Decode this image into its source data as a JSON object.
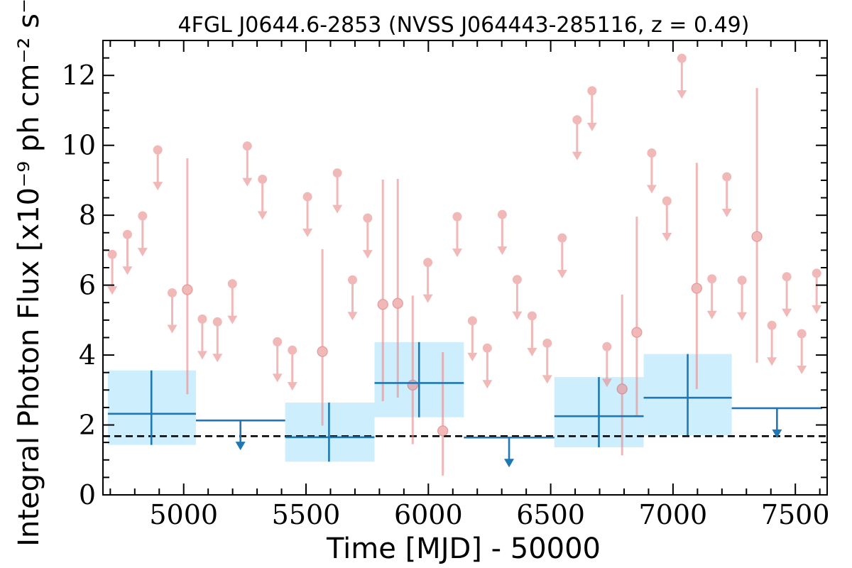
{
  "chart_data": {
    "type": "scatter",
    "title": "4FGL J0644.6-2853 (NVSS J064443-285116, z = 0.49)",
    "xlabel": "Time [MJD] - 50000",
    "ylabel": "Integral Photon Flux [x10⁻⁹ ph cm⁻² s⁻¹]",
    "xlim": [
      4670,
      7630
    ],
    "ylim": [
      0,
      13
    ],
    "xticks": [
      5000,
      5500,
      6000,
      6500,
      7000,
      7500
    ],
    "yticks": [
      0,
      2,
      4,
      6,
      8,
      10,
      12
    ],
    "grid": false,
    "colors": {
      "short_bins": "#e88a8a",
      "long_bins": "#1f77b4",
      "long_bins_fill": "#cdeefc",
      "reference_line": "#000000"
    },
    "reference_line": {
      "y": 1.68,
      "style": "dashed"
    },
    "short_bins_upper_limits": [
      {
        "x": 4708,
        "y": 6.88
      },
      {
        "x": 4770,
        "y": 7.45
      },
      {
        "x": 4832,
        "y": 7.98
      },
      {
        "x": 4894,
        "y": 9.87
      },
      {
        "x": 4953,
        "y": 5.78
      },
      {
        "x": 5076,
        "y": 5.03
      },
      {
        "x": 5138,
        "y": 4.95
      },
      {
        "x": 5199,
        "y": 6.04
      },
      {
        "x": 5260,
        "y": 9.98
      },
      {
        "x": 5322,
        "y": 9.03
      },
      {
        "x": 5383,
        "y": 4.38
      },
      {
        "x": 5444,
        "y": 4.14
      },
      {
        "x": 5506,
        "y": 8.53
      },
      {
        "x": 5628,
        "y": 9.21
      },
      {
        "x": 5690,
        "y": 6.15
      },
      {
        "x": 5752,
        "y": 7.92
      },
      {
        "x": 5998,
        "y": 6.65
      },
      {
        "x": 6118,
        "y": 7.96
      },
      {
        "x": 6180,
        "y": 4.98
      },
      {
        "x": 6241,
        "y": 4.2
      },
      {
        "x": 6302,
        "y": 8.02
      },
      {
        "x": 6363,
        "y": 6.16
      },
      {
        "x": 6424,
        "y": 5.12
      },
      {
        "x": 6486,
        "y": 4.34
      },
      {
        "x": 6547,
        "y": 7.35
      },
      {
        "x": 6608,
        "y": 10.73
      },
      {
        "x": 6669,
        "y": 11.56
      },
      {
        "x": 6730,
        "y": 4.24
      },
      {
        "x": 6913,
        "y": 9.78
      },
      {
        "x": 6975,
        "y": 8.41
      },
      {
        "x": 7036,
        "y": 12.49
      },
      {
        "x": 7159,
        "y": 6.18
      },
      {
        "x": 7220,
        "y": 9.1
      },
      {
        "x": 7282,
        "y": 6.14
      },
      {
        "x": 7404,
        "y": 4.85
      },
      {
        "x": 7465,
        "y": 6.24
      },
      {
        "x": 7526,
        "y": 4.61
      },
      {
        "x": 7587,
        "y": 6.34
      }
    ],
    "short_bins_detections": [
      {
        "x": 5015,
        "y": 5.87,
        "ylow": 2.88,
        "yhigh": 9.63
      },
      {
        "x": 5567,
        "y": 4.1,
        "ylow": 1.98,
        "yhigh": 7.03
      },
      {
        "x": 5814,
        "y": 5.45,
        "ylow": 2.68,
        "yhigh": 9.02
      },
      {
        "x": 5875,
        "y": 5.48,
        "ylow": 2.78,
        "yhigh": 9.04
      },
      {
        "x": 5936,
        "y": 3.14,
        "ylow": 1.45,
        "yhigh": 5.7
      },
      {
        "x": 6059,
        "y": 1.83,
        "ylow": 0.55,
        "yhigh": 4.08
      },
      {
        "x": 6792,
        "y": 3.03,
        "ylow": 1.13,
        "yhigh": 5.73
      },
      {
        "x": 6852,
        "y": 4.65,
        "ylow": 2.28,
        "yhigh": 7.96
      },
      {
        "x": 7097,
        "y": 5.91,
        "ylow": 3.03,
        "yhigh": 9.5
      },
      {
        "x": 7343,
        "y": 7.39,
        "ylow": 3.78,
        "yhigh": 11.64
      }
    ],
    "long_bins_detections": [
      {
        "x": 4868,
        "xmin": 4690,
        "xmax": 5050,
        "y": 2.32,
        "ylow": 1.43,
        "yhigh": 3.56
      },
      {
        "x": 5594,
        "xmin": 5415,
        "xmax": 5780,
        "y": 1.65,
        "ylow": 0.95,
        "yhigh": 2.64
      },
      {
        "x": 5962,
        "xmin": 5780,
        "xmax": 6145,
        "y": 3.2,
        "ylow": 2.22,
        "yhigh": 4.37
      },
      {
        "x": 6697,
        "xmin": 6515,
        "xmax": 6880,
        "y": 2.25,
        "ylow": 1.36,
        "yhigh": 3.37
      },
      {
        "x": 7060,
        "xmin": 6880,
        "xmax": 7240,
        "y": 2.78,
        "ylow": 1.7,
        "yhigh": 4.03
      }
    ],
    "long_bins_upper_limits": [
      {
        "x": 5232,
        "xmin": 5050,
        "xmax": 5415,
        "y": 2.13
      },
      {
        "x": 6330,
        "xmin": 6145,
        "xmax": 6515,
        "y": 1.64
      },
      {
        "x": 7425,
        "xmin": 7240,
        "xmax": 7610,
        "y": 2.48
      }
    ]
  }
}
